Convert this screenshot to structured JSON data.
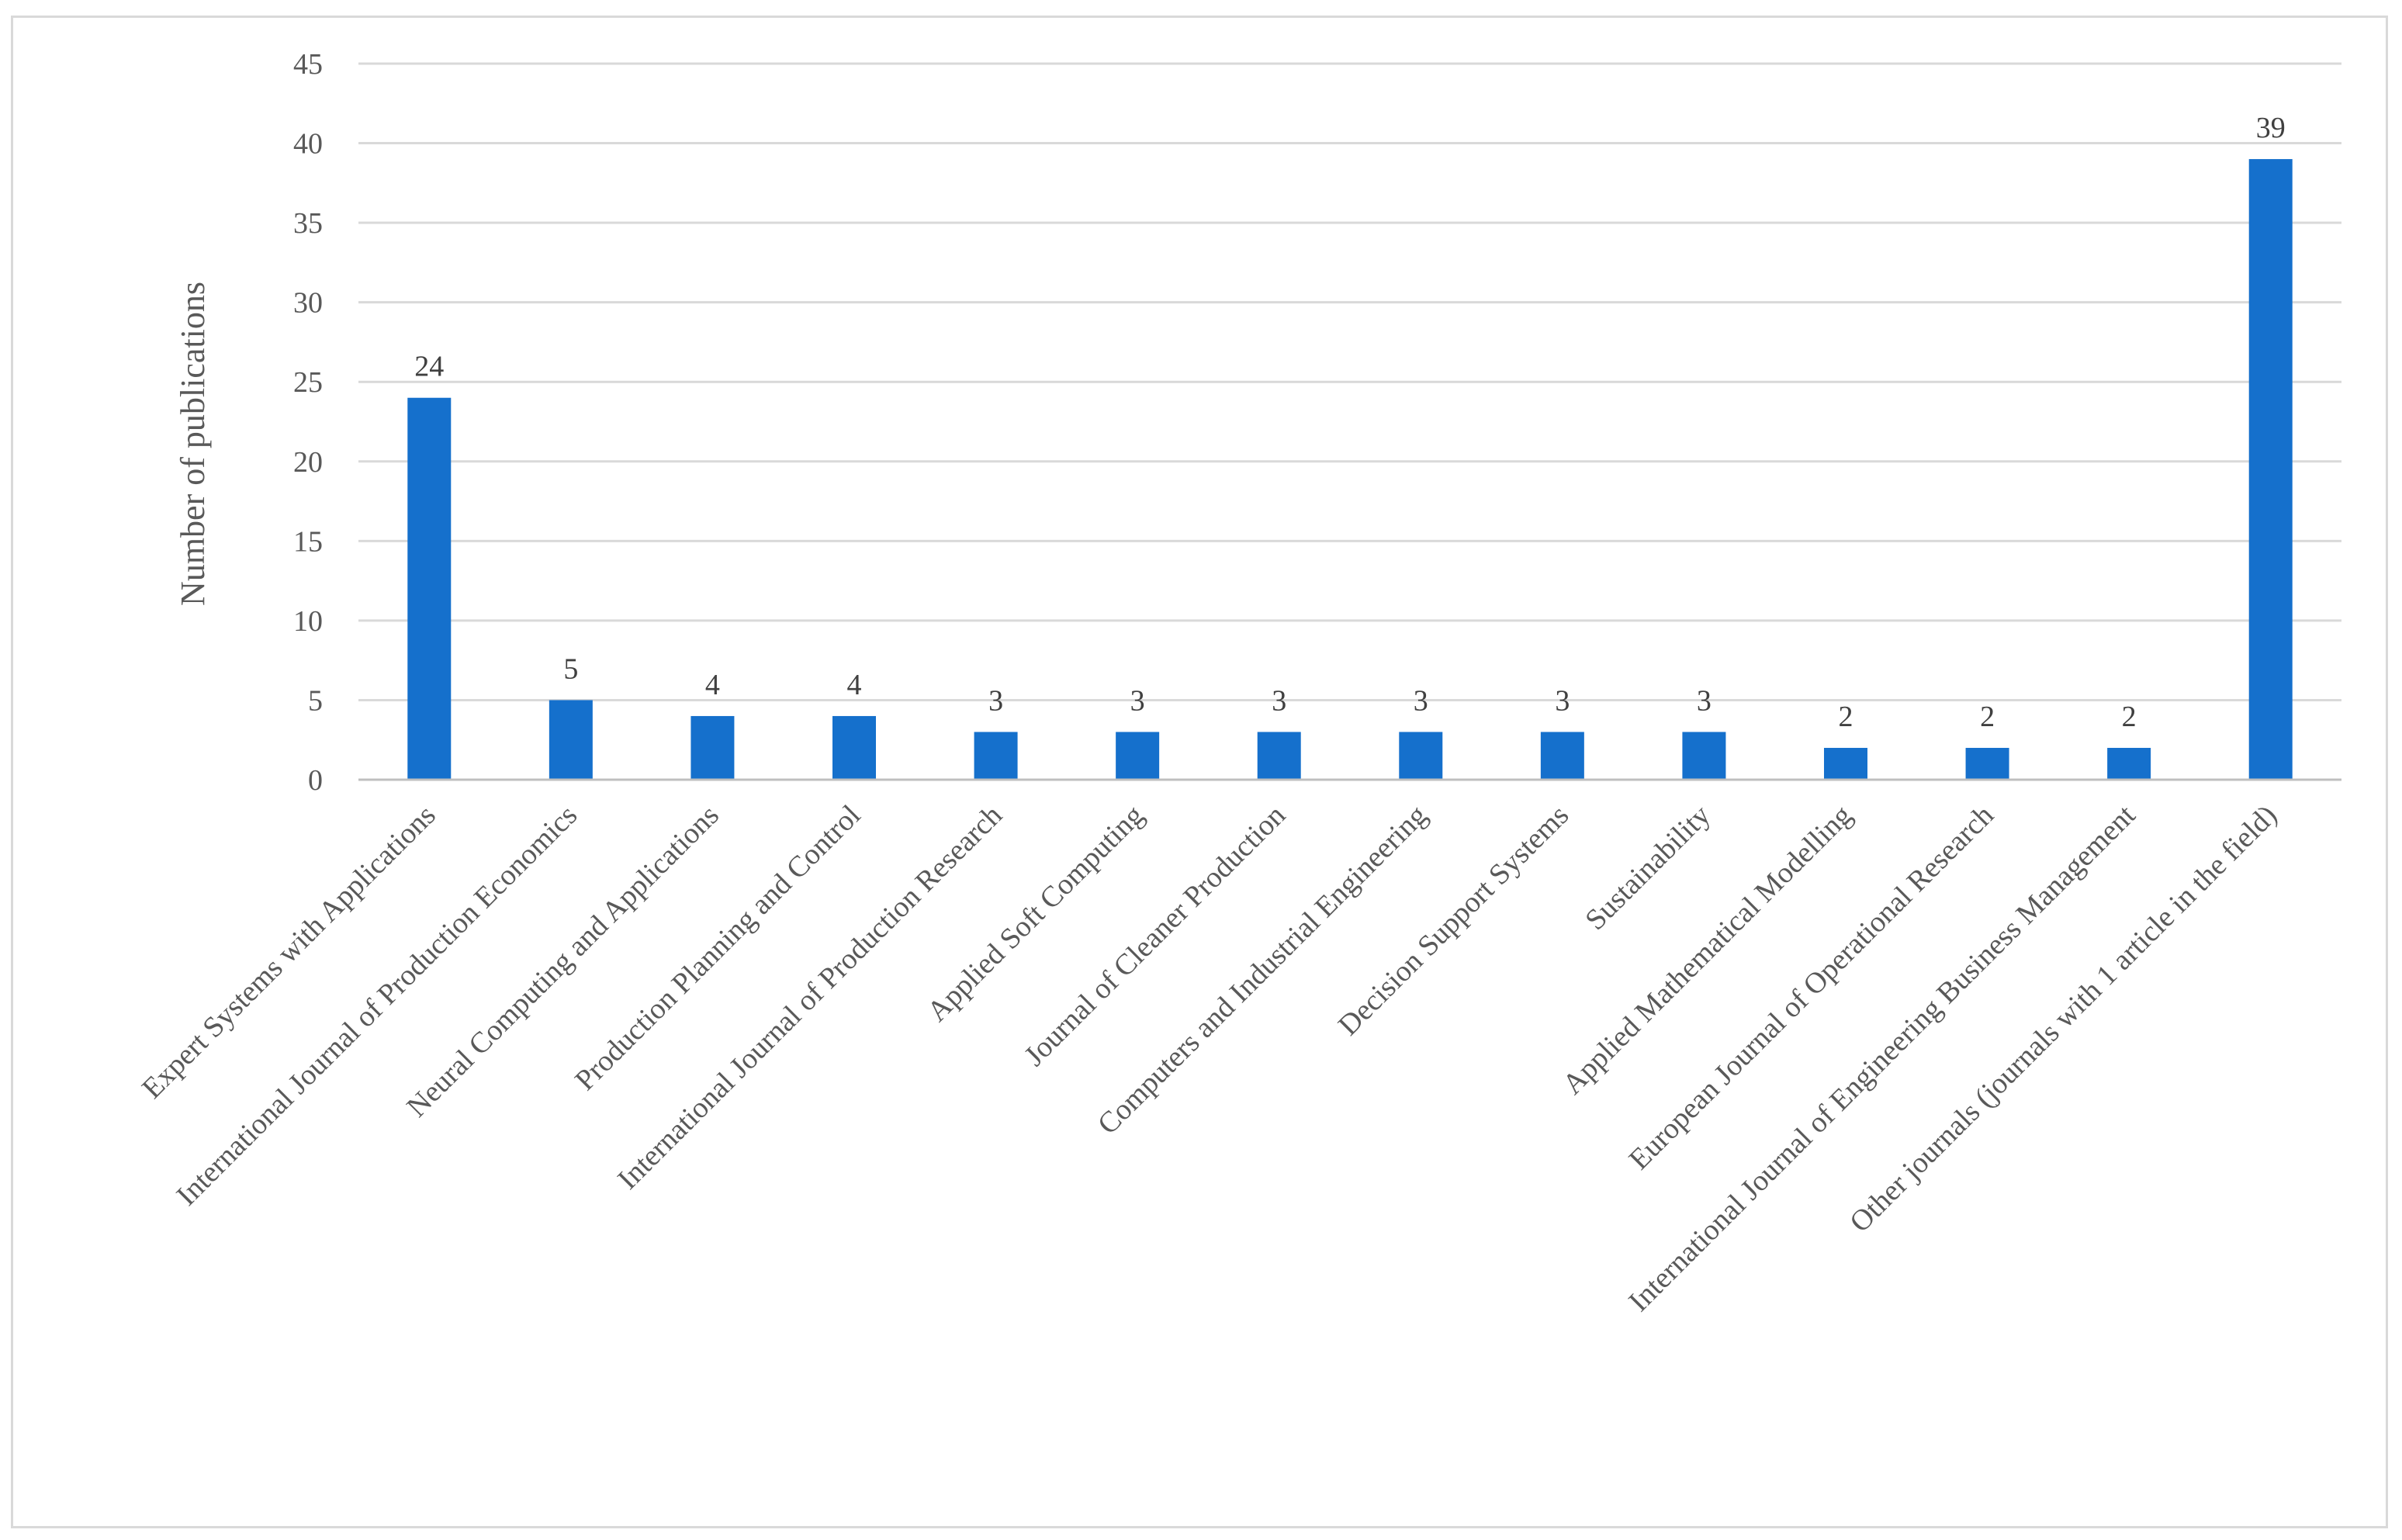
{
  "chart_data": {
    "type": "bar",
    "title": "",
    "xlabel": "",
    "ylabel": "Number of publications",
    "ylim": [
      0,
      45
    ],
    "yticks": [
      0,
      5,
      10,
      15,
      20,
      25,
      30,
      35,
      40,
      45
    ],
    "grid": true,
    "legend": "none",
    "bar_color": "#1570cc",
    "categories": [
      "Expert Systems with Applications",
      "International Journal of Production Economics",
      "Neural Computing and Applications",
      "Production Planning and Control",
      "International Journal of Production Research",
      "Applied Soft Computing",
      "Journal of Cleaner Production",
      "Computers and Industrial Engineering",
      "Decision Support Systems",
      "Sustainability",
      "Applied Mathematical Modelling",
      "European Journal of Operational Research",
      "International Journal of Engineering Business Management",
      "Other journals (journals with 1 article in the field)"
    ],
    "values": [
      24,
      5,
      4,
      4,
      3,
      3,
      3,
      3,
      3,
      3,
      2,
      2,
      2,
      39
    ]
  }
}
